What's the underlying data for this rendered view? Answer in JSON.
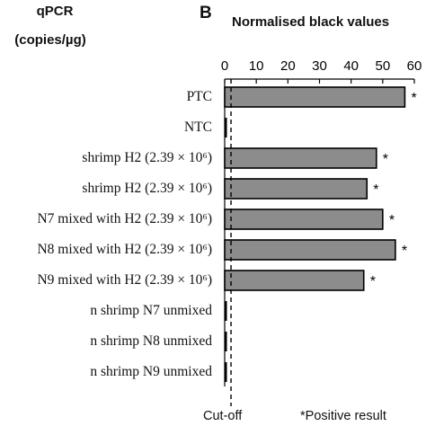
{
  "left_panel": {
    "title": "qPCR",
    "unit": "(copies/µg)"
  },
  "panel_letter": "B",
  "chart_data": {
    "type": "bar",
    "orientation": "horizontal",
    "title": "Normalised black values",
    "xlabel": "",
    "ylabel": "",
    "xlim": [
      0,
      60
    ],
    "xticks": [
      "0",
      "10",
      "20",
      "30",
      "40",
      "50",
      "60"
    ],
    "categories": [
      "PTC",
      "NTC",
      "shrimp H2 (2.39 × 10⁶)",
      "shrimp H2 (2.39 × 10⁶)",
      "N7 mixed with H2 (2.39 × 10⁶)",
      "N8 mixed with H2 (2.39 × 10⁶)",
      "N9 mixed with H2 (2.39 × 10⁶)",
      "n shrimp N7 unmixed",
      "n shrimp N8 unmixed",
      "n shrimp N9 unmixed"
    ],
    "values": [
      57,
      0,
      48,
      45,
      50,
      54,
      44,
      0,
      0,
      0
    ],
    "markers": [
      "*",
      "",
      "*",
      "*",
      "*",
      "*",
      "*",
      "",
      "",
      ""
    ],
    "cutoff": {
      "value": 2,
      "label": "Cut-off"
    },
    "footnote": "*Positive result",
    "grid": false,
    "colors": {
      "bar": "#8c8c8c",
      "outline": "#000000"
    }
  }
}
